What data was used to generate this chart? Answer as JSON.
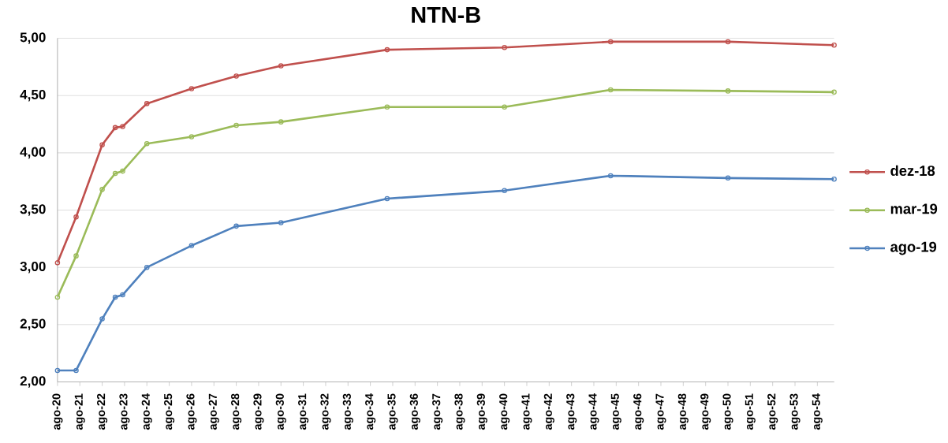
{
  "chart_data": {
    "type": "line",
    "title": "NTN-B",
    "x": [
      "2020-08",
      "2021-06",
      "2022-08",
      "2023-03",
      "2023-07",
      "2024-08",
      "2026-08",
      "2028-08",
      "2030-08",
      "2035-05",
      "2040-08",
      "2045-05",
      "2050-08",
      "2055-05"
    ],
    "series": [
      {
        "name": "dez-18",
        "color": "#c0504d",
        "values": [
          3.04,
          3.44,
          4.07,
          4.22,
          4.23,
          4.43,
          4.56,
          4.67,
          4.76,
          4.9,
          4.92,
          4.97,
          4.97,
          4.94
        ]
      },
      {
        "name": "mar-19",
        "color": "#9bbb59",
        "values": [
          2.74,
          3.1,
          3.68,
          3.82,
          3.84,
          4.08,
          4.14,
          4.24,
          4.27,
          4.4,
          4.4,
          4.55,
          4.54,
          4.53
        ]
      },
      {
        "name": "ago-19",
        "color": "#4f81bd",
        "values": [
          2.1,
          2.1,
          2.55,
          2.74,
          2.76,
          3.0,
          3.19,
          3.36,
          3.39,
          3.6,
          3.67,
          3.8,
          3.78,
          3.77
        ]
      }
    ],
    "xlim": [
      "2020-08",
      "2055-05"
    ],
    "xticks": [
      {
        "value": "2020-08",
        "label": "ago-20"
      },
      {
        "value": "2021-08",
        "label": "ago-21"
      },
      {
        "value": "2022-08",
        "label": "ago-22"
      },
      {
        "value": "2023-08",
        "label": "ago-23"
      },
      {
        "value": "2024-08",
        "label": "ago-24"
      },
      {
        "value": "2025-08",
        "label": "ago-25"
      },
      {
        "value": "2026-08",
        "label": "ago-26"
      },
      {
        "value": "2027-08",
        "label": "ago-27"
      },
      {
        "value": "2028-08",
        "label": "ago-28"
      },
      {
        "value": "2029-08",
        "label": "ago-29"
      },
      {
        "value": "2030-08",
        "label": "ago-30"
      },
      {
        "value": "2031-08",
        "label": "ago-31"
      },
      {
        "value": "2032-08",
        "label": "ago-32"
      },
      {
        "value": "2033-08",
        "label": "ago-33"
      },
      {
        "value": "2034-08",
        "label": "ago-34"
      },
      {
        "value": "2035-08",
        "label": "ago-35"
      },
      {
        "value": "2036-08",
        "label": "ago-36"
      },
      {
        "value": "2037-08",
        "label": "ago-37"
      },
      {
        "value": "2038-08",
        "label": "ago-38"
      },
      {
        "value": "2039-08",
        "label": "ago-39"
      },
      {
        "value": "2040-08",
        "label": "ago-40"
      },
      {
        "value": "2041-08",
        "label": "ago-41"
      },
      {
        "value": "2042-08",
        "label": "ago-42"
      },
      {
        "value": "2043-08",
        "label": "ago-43"
      },
      {
        "value": "2044-08",
        "label": "ago-44"
      },
      {
        "value": "2045-08",
        "label": "ago-45"
      },
      {
        "value": "2046-08",
        "label": "ago-46"
      },
      {
        "value": "2047-08",
        "label": "ago-47"
      },
      {
        "value": "2048-08",
        "label": "ago-48"
      },
      {
        "value": "2049-08",
        "label": "ago-49"
      },
      {
        "value": "2050-08",
        "label": "ago-50"
      },
      {
        "value": "2051-08",
        "label": "ago-51"
      },
      {
        "value": "2052-08",
        "label": "ago-52"
      },
      {
        "value": "2053-08",
        "label": "ago-53"
      },
      {
        "value": "2054-08",
        "label": "ago-54"
      }
    ],
    "ylim": [
      2.0,
      5.0
    ],
    "yticks": [
      {
        "value": 2.0,
        "label": "2,00"
      },
      {
        "value": 2.5,
        "label": "2,50"
      },
      {
        "value": 3.0,
        "label": "3,00"
      },
      {
        "value": 3.5,
        "label": "3,50"
      },
      {
        "value": 4.0,
        "label": "4,00"
      },
      {
        "value": 4.5,
        "label": "4,50"
      },
      {
        "value": 5.0,
        "label": "5,00"
      }
    ],
    "grid": "y",
    "legend": "right",
    "marker": "circle",
    "line_style": "solid"
  }
}
